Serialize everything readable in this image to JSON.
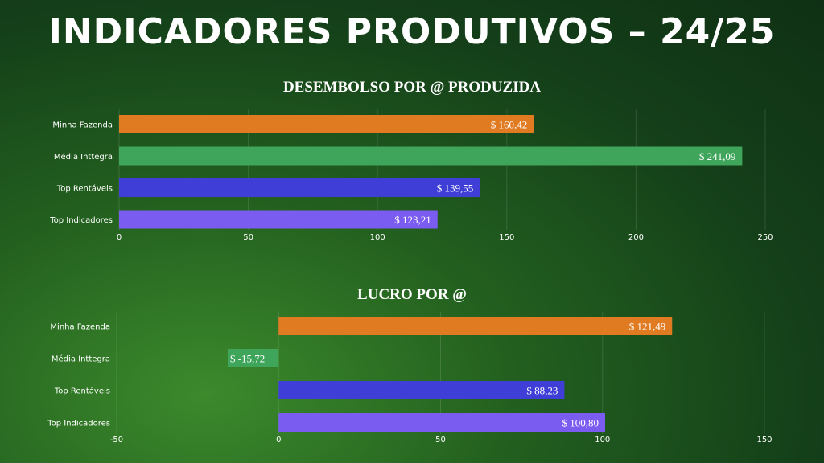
{
  "page": {
    "title": "INDICADORES PRODUTIVOS – 24/25"
  },
  "chart_data": [
    {
      "type": "bar",
      "orientation": "horizontal",
      "title": "DESEMBOLSO POR @ PRODUZIDA",
      "categories": [
        "Minha Fazenda",
        "Média Inttegra",
        "Top Rentáveis",
        "Top Indicadores"
      ],
      "values": [
        160.42,
        241.09,
        139.55,
        123.21
      ],
      "value_labels": [
        "$ 160,42",
        "$ 241,09",
        "$ 139,55",
        "$ 123,21"
      ],
      "colors": [
        "#e07b22",
        "#3fa55a",
        "#3f3fd8",
        "#7b5cf0"
      ],
      "xlim": [
        0,
        250
      ],
      "xticks": [
        0,
        50,
        100,
        150,
        200,
        250
      ],
      "grid": true
    },
    {
      "type": "bar",
      "orientation": "horizontal",
      "title": "LUCRO POR @",
      "categories": [
        "Minha Fazenda",
        "Média Inttegra",
        "Top Rentáveis",
        "Top Indicadores"
      ],
      "values": [
        121.49,
        -15.72,
        88.23,
        100.8
      ],
      "value_labels": [
        "$ 121,49",
        "$ -15,72",
        "$ 88,23",
        "$ 100,80"
      ],
      "colors": [
        "#e07b22",
        "#3fa55a",
        "#3f3fd8",
        "#7b5cf0"
      ],
      "xlim": [
        -50,
        150
      ],
      "xticks": [
        -50,
        0,
        50,
        100,
        150
      ],
      "grid": true
    }
  ]
}
